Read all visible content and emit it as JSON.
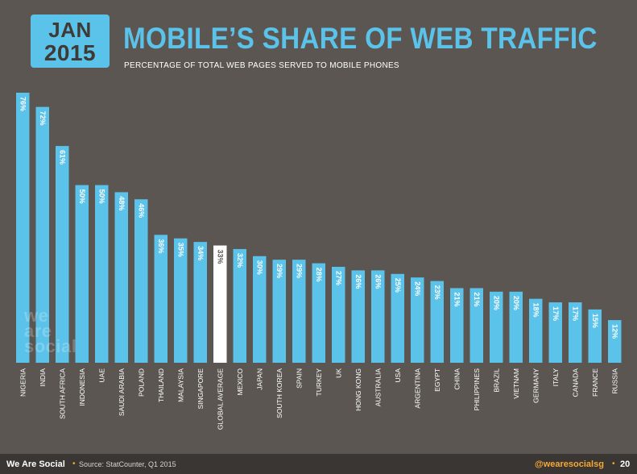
{
  "header": {
    "badge_line1": "JAN",
    "badge_line2": "2015",
    "title": "MOBILE’S SHARE OF WEB TRAFFIC",
    "subtitle": "PERCENTAGE OF TOTAL WEB PAGES SERVED TO MOBILE PHONES"
  },
  "watermark": {
    "line1": "we",
    "line2": "are",
    "line3": "social"
  },
  "footer": {
    "brand": "We Are Social",
    "source": "Source: StatCounter, Q1 2015",
    "handle": "@wearesocialsg",
    "page": "20"
  },
  "colors": {
    "background": "#5b5651",
    "bar": "#5bc3ea",
    "highlight_bar": "#ffffff",
    "footer_bg": "#3a3633",
    "accent": "#f7a833"
  },
  "chart_data": {
    "type": "bar",
    "title": "MOBILE’S SHARE OF WEB TRAFFIC",
    "subtitle": "PERCENTAGE OF TOTAL WEB PAGES SERVED TO MOBILE PHONES",
    "categories": [
      "NIGERIA",
      "INDIA",
      "SOUTH AFRICA",
      "INDONESIA",
      "UAE",
      "SAUDI ARABIA",
      "POLAND",
      "THAILAND",
      "MALAYSIA",
      "SINGAPORE",
      "GLOBAL AVERAGE",
      "MEXICO",
      "JAPAN",
      "SOUTH KOREA",
      "SPAIN",
      "TURKEY",
      "UK",
      "HONG KONG",
      "AUSTRALIA",
      "USA",
      "ARGENTINA",
      "EGYPT",
      "CHINA",
      "PHILIPPINES",
      "BRAZIL",
      "VIETNAM",
      "GERMANY",
      "ITALY",
      "CANADA",
      "FRANCE",
      "RUSSIA"
    ],
    "values": [
      76,
      72,
      61,
      50,
      50,
      48,
      46,
      36,
      35,
      34,
      33,
      32,
      30,
      29,
      29,
      28,
      27,
      26,
      26,
      25,
      24,
      23,
      21,
      21,
      20,
      20,
      18,
      17,
      17,
      15,
      12
    ],
    "labels": [
      "76%",
      "72%",
      "61%",
      "50%",
      "50%",
      "48%",
      "46%",
      "36%",
      "35%",
      "34%",
      "33%",
      "32%",
      "30%",
      "29%",
      "29%",
      "28%",
      "27%",
      "26%",
      "26%",
      "25%",
      "24%",
      "23%",
      "21%",
      "21%",
      "20%",
      "20%",
      "18%",
      "17%",
      "17%",
      "15%",
      "12%"
    ],
    "highlight": "GLOBAL AVERAGE",
    "ylim": [
      0,
      76
    ],
    "xlabel": "",
    "ylabel": "",
    "grid": false,
    "legend": "none"
  }
}
